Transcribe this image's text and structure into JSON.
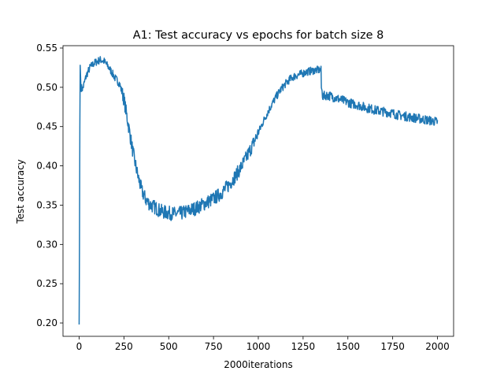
{
  "chart_data": {
    "type": "line",
    "title": "A1: Test accuracy vs epochs for batch size 8",
    "xlabel": "2000iterations",
    "ylabel": "Test accuracy",
    "xlim": [
      -90,
      2090
    ],
    "ylim": [
      0.183,
      0.553
    ],
    "xticks": [
      0,
      250,
      500,
      750,
      1000,
      1250,
      1500,
      1750,
      2000
    ],
    "xtick_labels": [
      "0",
      "250",
      "500",
      "750",
      "1000",
      "1250",
      "1500",
      "1750",
      "2000"
    ],
    "yticks": [
      0.2,
      0.25,
      0.3,
      0.35,
      0.4,
      0.45,
      0.5,
      0.55
    ],
    "ytick_labels": [
      "0.20",
      "0.25",
      "0.30",
      "0.35",
      "0.40",
      "0.45",
      "0.50",
      "0.55"
    ],
    "grid": false,
    "legend": "none",
    "color": "#1f77b4",
    "series": [
      {
        "x": [
          0,
          2,
          4,
          6,
          10,
          20,
          40,
          60,
          80,
          100,
          120,
          140,
          160,
          180,
          200,
          225,
          250,
          275,
          300,
          325,
          350,
          375,
          400,
          425,
          450,
          475,
          500,
          525,
          550,
          575,
          600,
          625,
          650,
          675,
          700,
          725,
          750,
          775,
          800,
          825,
          850,
          875,
          900,
          925,
          950,
          975,
          1000,
          1025,
          1050,
          1075,
          1100,
          1125,
          1150,
          1175,
          1200,
          1225,
          1250,
          1275,
          1300,
          1325,
          1350,
          1352,
          1360,
          1375,
          1400,
          1425,
          1450,
          1475,
          1500,
          1525,
          1550,
          1575,
          1600,
          1625,
          1650,
          1675,
          1700,
          1725,
          1750,
          1775,
          1800,
          1825,
          1850,
          1875,
          1900,
          1925,
          1950,
          1975,
          2000
        ],
        "y": [
          0.198,
          0.3,
          0.45,
          0.528,
          0.5,
          0.498,
          0.515,
          0.525,
          0.53,
          0.533,
          0.535,
          0.533,
          0.527,
          0.52,
          0.512,
          0.505,
          0.485,
          0.452,
          0.418,
          0.39,
          0.368,
          0.356,
          0.35,
          0.347,
          0.343,
          0.341,
          0.34,
          0.339,
          0.339,
          0.34,
          0.342,
          0.344,
          0.346,
          0.349,
          0.352,
          0.355,
          0.358,
          0.362,
          0.367,
          0.373,
          0.38,
          0.388,
          0.397,
          0.407,
          0.418,
          0.43,
          0.442,
          0.455,
          0.467,
          0.478,
          0.488,
          0.497,
          0.504,
          0.51,
          0.514,
          0.516,
          0.518,
          0.52,
          0.521,
          0.522,
          0.522,
          0.5,
          0.488,
          0.49,
          0.489,
          0.487,
          0.485,
          0.483,
          0.481,
          0.479,
          0.478,
          0.476,
          0.474,
          0.473,
          0.471,
          0.47,
          0.469,
          0.468,
          0.467,
          0.465,
          0.464,
          0.463,
          0.462,
          0.461,
          0.46,
          0.459,
          0.458,
          0.457,
          0.456
        ]
      }
    ]
  }
}
